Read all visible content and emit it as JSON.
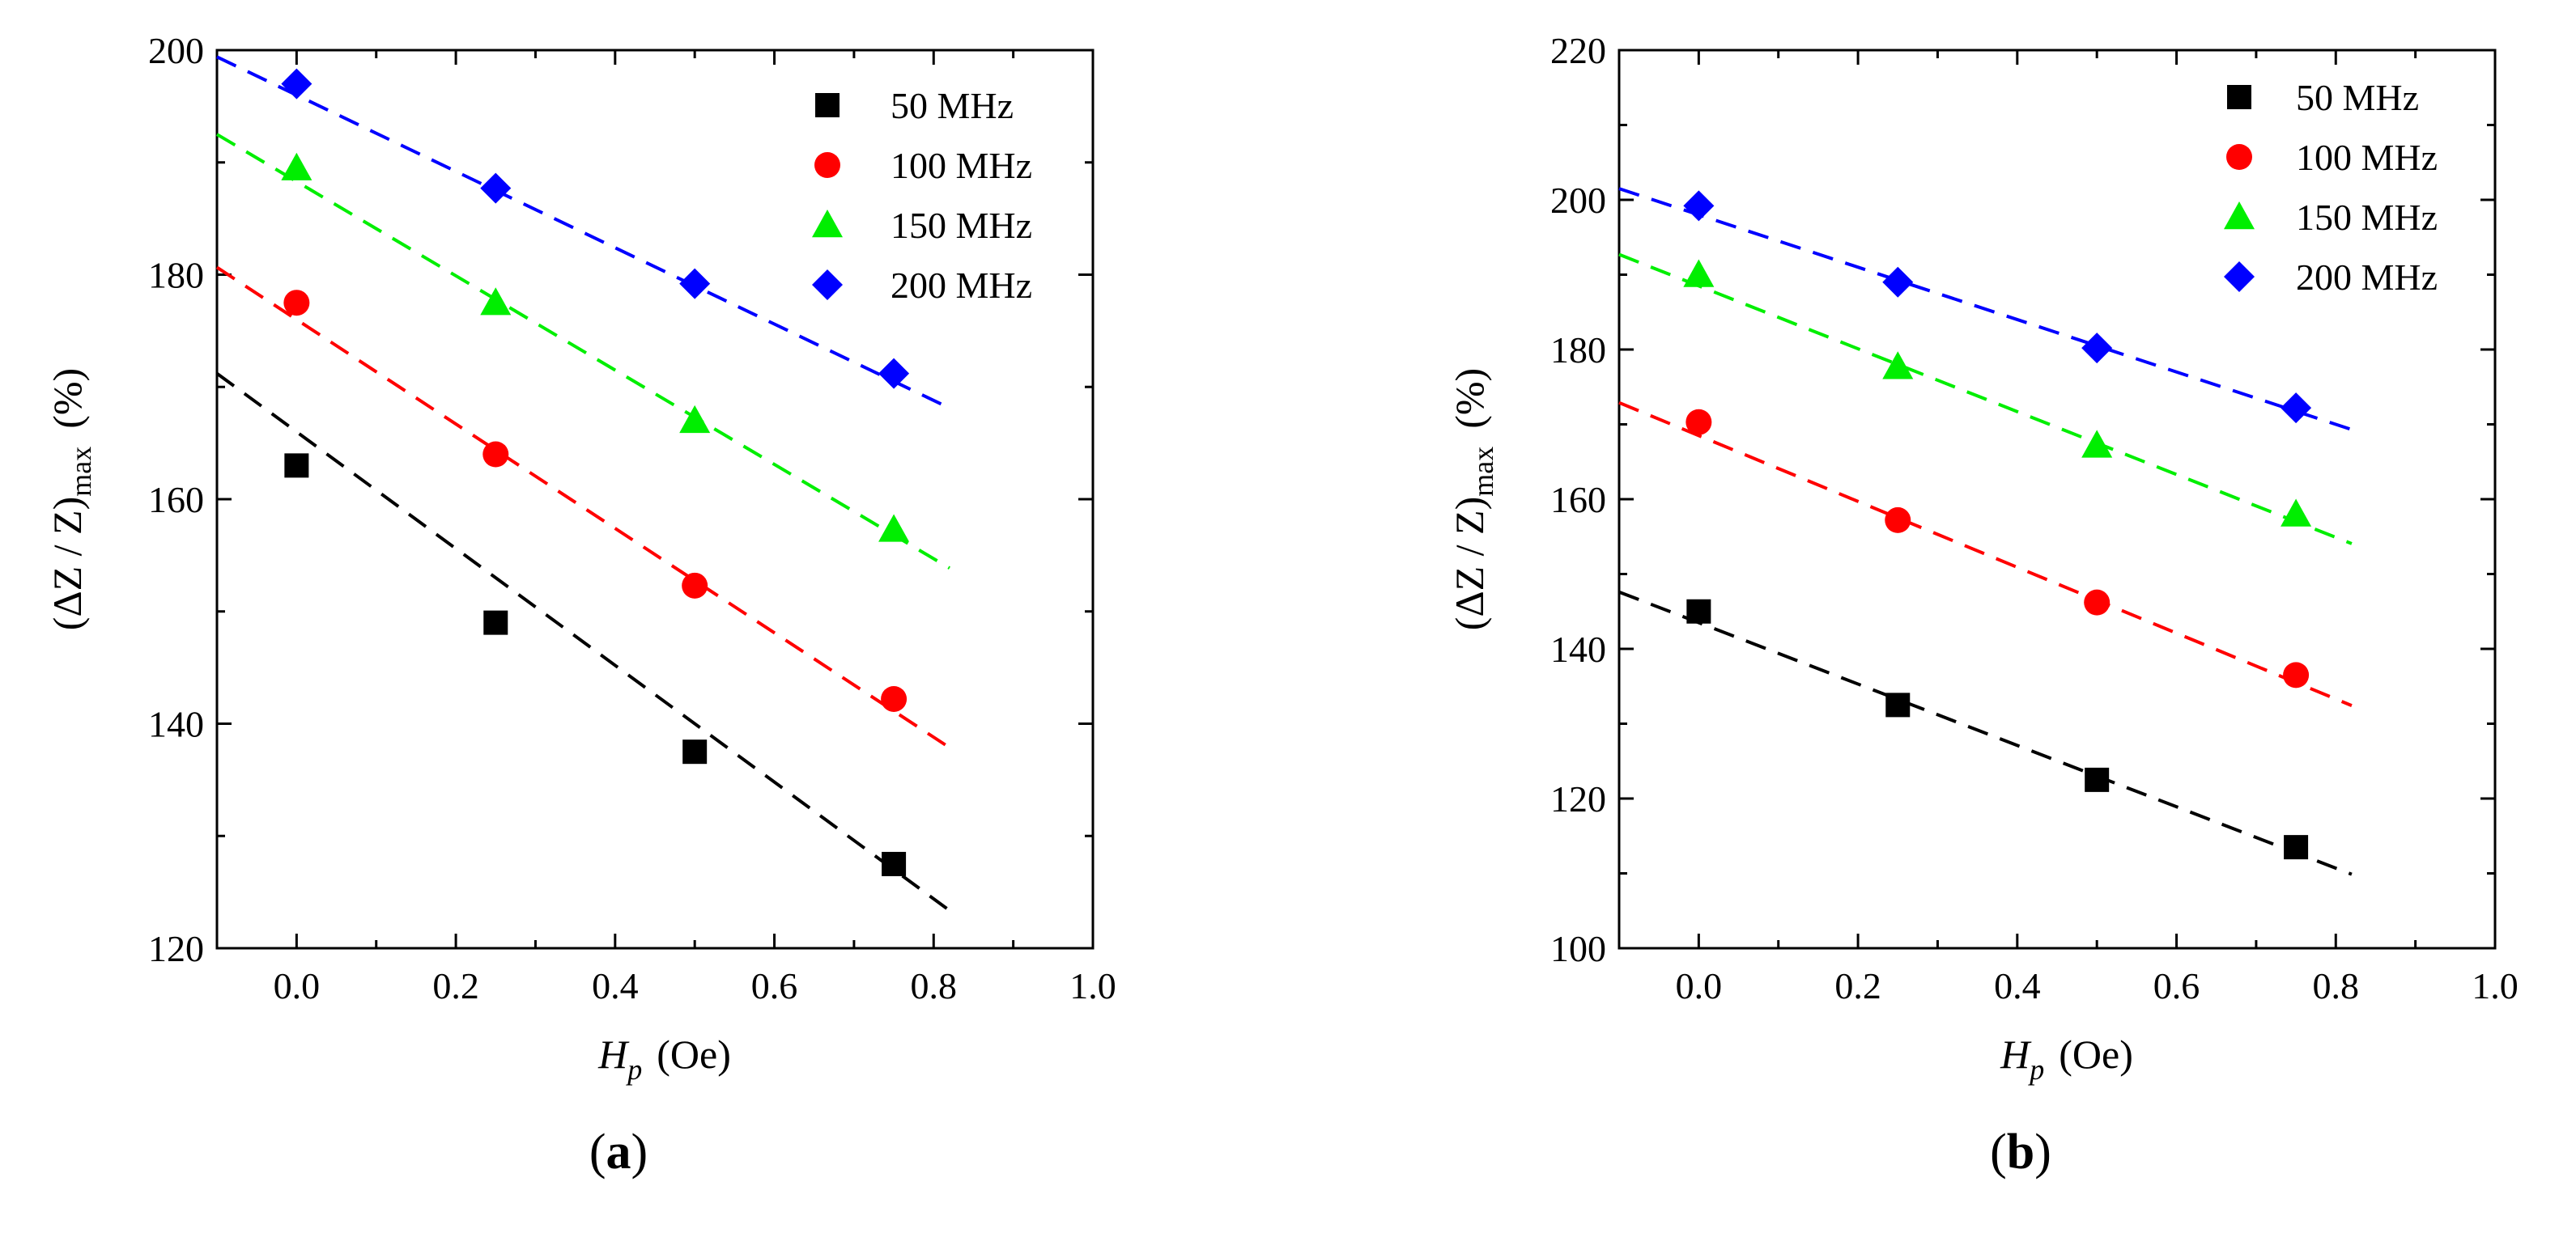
{
  "chart_data": [
    {
      "type": "scatter",
      "panel_label": {
        "open": "(",
        "letter": "a",
        "close": ")"
      },
      "xlabel": {
        "main": "H",
        "sub": "p",
        "unit": "(Oe)"
      },
      "ylabel": {
        "open": "(ΔZ / Z)",
        "sub": "max",
        "unit": "(%)"
      },
      "xlim": [
        -0.1,
        1.0
      ],
      "ylim": [
        120,
        200
      ],
      "xticks": [
        "0.0",
        "0.2",
        "0.4",
        "0.6",
        "0.8",
        "1.0"
      ],
      "yticks": [
        "120",
        "140",
        "160",
        "180",
        "200"
      ],
      "x": [
        0.0,
        0.25,
        0.5,
        0.75
      ],
      "fit_range": [
        -0.1,
        0.82
      ],
      "legend_position": "top-right",
      "grid": false,
      "series": [
        {
          "name": "50 MHz",
          "marker": "square",
          "color": "#000000",
          "values": [
            163.0,
            149.0,
            137.5,
            127.5
          ],
          "fit": [
            166.0,
            -52.0
          ]
        },
        {
          "name": "100 MHz",
          "marker": "circle",
          "color": "#ff0000",
          "values": [
            177.5,
            164.0,
            152.3,
            142.2
          ],
          "fit": [
            176.0,
            -46.5
          ]
        },
        {
          "name": "150 MHz",
          "marker": "triangle",
          "color": "#00ee00",
          "values": [
            189.5,
            177.5,
            167.0,
            157.3
          ],
          "fit": [
            188.3,
            -42.0
          ]
        },
        {
          "name": "200 MHz",
          "marker": "diamond",
          "color": "#0000ff",
          "values": [
            197.0,
            187.7,
            179.2,
            171.2
          ],
          "fit": [
            196.0,
            -34.0
          ]
        }
      ]
    },
    {
      "type": "scatter",
      "panel_label": {
        "open": "(",
        "letter": "b",
        "close": ")"
      },
      "xlabel": {
        "main": "H",
        "sub": "p",
        "unit": "(Oe)"
      },
      "ylabel": {
        "open": "(ΔZ / Z)",
        "sub": "max",
        "unit": "(%)"
      },
      "xlim": [
        -0.1,
        1.0
      ],
      "ylim": [
        100,
        220
      ],
      "xticks": [
        "0.0",
        "0.2",
        "0.4",
        "0.6",
        "0.8",
        "1.0"
      ],
      "yticks": [
        "100",
        "120",
        "140",
        "160",
        "180",
        "200",
        "220"
      ],
      "x": [
        0.0,
        0.25,
        0.5,
        0.75
      ],
      "fit_range": [
        -0.1,
        0.82
      ],
      "legend_position": "top-right",
      "grid": false,
      "series": [
        {
          "name": "50 MHz",
          "marker": "square",
          "color": "#000000",
          "values": [
            145.0,
            132.5,
            122.5,
            113.5
          ],
          "fit": [
            143.5,
            -41.0
          ]
        },
        {
          "name": "100 MHz",
          "marker": "circle",
          "color": "#ff0000",
          "values": [
            170.3,
            157.2,
            146.2,
            136.5
          ],
          "fit": [
            168.5,
            -44.0
          ]
        },
        {
          "name": "150 MHz",
          "marker": "triangle",
          "color": "#00ee00",
          "values": [
            190.0,
            177.7,
            167.2,
            158.0
          ],
          "fit": [
            188.5,
            -42.0
          ]
        },
        {
          "name": "200 MHz",
          "marker": "diamond",
          "color": "#0000ff",
          "values": [
            199.2,
            189.0,
            180.2,
            172.2
          ],
          "fit": [
            198.0,
            -35.0
          ]
        }
      ]
    }
  ]
}
